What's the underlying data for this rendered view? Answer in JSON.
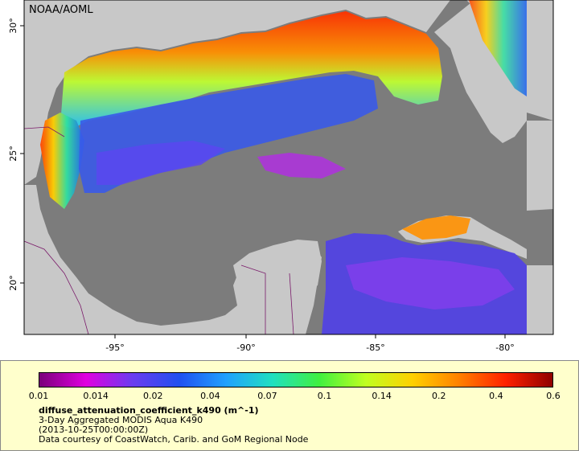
{
  "credit_top": "NOAA/AOML",
  "axes": {
    "x_ticks": [
      "-95°",
      "-90°",
      "-85°",
      "-80°"
    ],
    "y_ticks": [
      "30°",
      "25°",
      "20°"
    ]
  },
  "colorbar": {
    "labels": [
      "0.01",
      "0.014",
      "0.02",
      "0.04",
      "0.07",
      "0.1",
      "0.14",
      "0.2",
      "0.4",
      "0.6"
    ],
    "colors": [
      "#7a007a",
      "#e000e0",
      "#6a3cf0",
      "#2050f0",
      "#20a0ff",
      "#20e0c0",
      "#40f040",
      "#c0ff20",
      "#ffd000",
      "#ff8000",
      "#ff2000",
      "#900000"
    ]
  },
  "legend": {
    "variable": "diffuse_attenuation_coefficient_k490 (m^-1)",
    "line1": "3-Day Aggregated MODIS Aqua K490",
    "line2": "(2013-10-25T00:00:00Z)",
    "line3": "Data courtesy of CoastWatch, Carib. and GoM Regional Node"
  },
  "colors": {
    "land": "#c8c8c8",
    "nodata": "#7c7c7c",
    "legend_bg": "#ffffcc"
  }
}
